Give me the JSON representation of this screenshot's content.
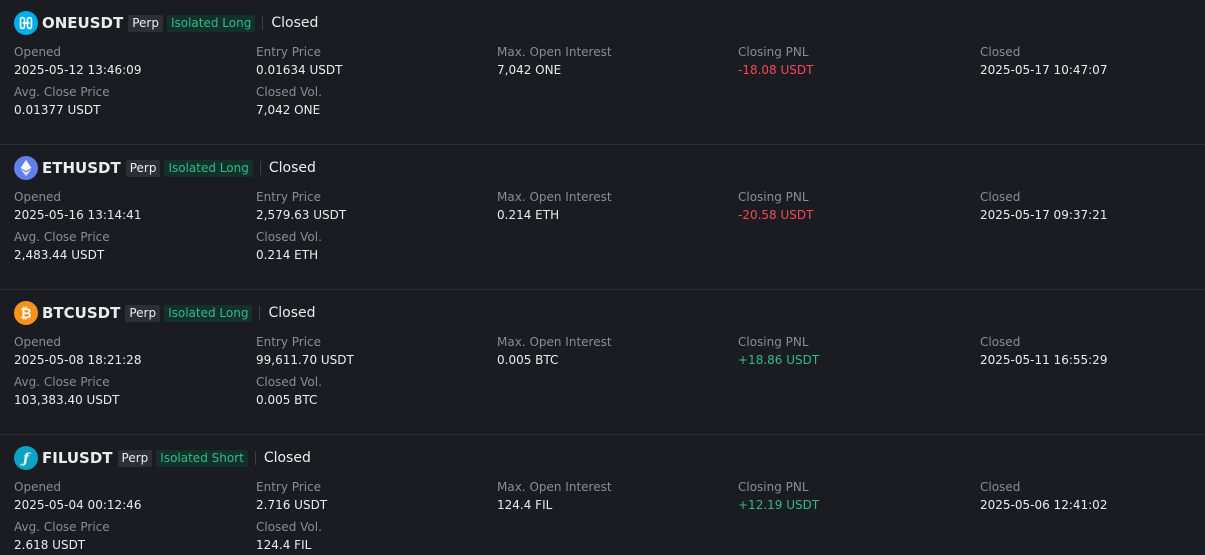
{
  "positions": [
    {
      "symbol": "ONEUSDT",
      "icon": "harmony-one-icon",
      "icon_color": "#00aee9",
      "perp": "Perp",
      "mode": "Isolated Long",
      "status": "Closed",
      "labels": {
        "opened": "Opened",
        "entry": "Entry Price",
        "max_oi": "Max. Open Interest",
        "pnl": "Closing PNL",
        "closed": "Closed",
        "avg_close": "Avg. Close Price",
        "closed_vol": "Closed Vol."
      },
      "opened": "2025-05-12 13:46:09",
      "entry_price": "0.01634 USDT",
      "max_open_interest": "7,042 ONE",
      "closing_pnl": "-18.08 USDT",
      "closed_time": "2025-05-17 10:47:07",
      "avg_close_price": "0.01377 USDT",
      "closed_vol": "7,042 ONE"
    },
    {
      "symbol": "ETHUSDT",
      "icon": "ethereum-icon",
      "icon_color": "#627eea",
      "perp": "Perp",
      "mode": "Isolated Long",
      "status": "Closed",
      "labels": {
        "opened": "Opened",
        "entry": "Entry Price",
        "max_oi": "Max. Open Interest",
        "pnl": "Closing PNL",
        "closed": "Closed",
        "avg_close": "Avg. Close Price",
        "closed_vol": "Closed Vol."
      },
      "opened": "2025-05-16 13:14:41",
      "entry_price": "2,579.63 USDT",
      "max_open_interest": "0.214 ETH",
      "closing_pnl": "-20.58 USDT",
      "closed_time": "2025-05-17 09:37:21",
      "avg_close_price": "2,483.44 USDT",
      "closed_vol": "0.214 ETH"
    },
    {
      "symbol": "BTCUSDT",
      "icon": "bitcoin-icon",
      "icon_color": "#f7931a",
      "perp": "Perp",
      "mode": "Isolated Long",
      "status": "Closed",
      "labels": {
        "opened": "Opened",
        "entry": "Entry Price",
        "max_oi": "Max. Open Interest",
        "pnl": "Closing PNL",
        "closed": "Closed",
        "avg_close": "Avg. Close Price",
        "closed_vol": "Closed Vol."
      },
      "opened": "2025-05-08 18:21:28",
      "entry_price": "99,611.70 USDT",
      "max_open_interest": "0.005 BTC",
      "closing_pnl": "+18.86 USDT",
      "closed_time": "2025-05-11 16:55:29",
      "avg_close_price": "103,383.40 USDT",
      "closed_vol": "0.005 BTC"
    },
    {
      "symbol": "FILUSDT",
      "icon": "filecoin-icon",
      "icon_color": "#0ba3c4",
      "perp": "Perp",
      "mode": "Isolated Short",
      "status": "Closed",
      "labels": {
        "opened": "Opened",
        "entry": "Entry Price",
        "max_oi": "Max. Open Interest",
        "pnl": "Closing PNL",
        "closed": "Closed",
        "avg_close": "Avg. Close Price",
        "closed_vol": "Closed Vol."
      },
      "opened": "2025-05-04 00:12:46",
      "entry_price": "2.716 USDT",
      "max_open_interest": "124.4 FIL",
      "closing_pnl": "+12.19 USDT",
      "closed_time": "2025-05-06 12:41:02",
      "avg_close_price": "2.618 USDT",
      "closed_vol": "124.4 FIL"
    }
  ],
  "colors": {
    "background": "#1b1c21",
    "loss": "#f6465d",
    "profit": "#2ebd85",
    "label": "#848e9c",
    "text": "#eaecef"
  }
}
